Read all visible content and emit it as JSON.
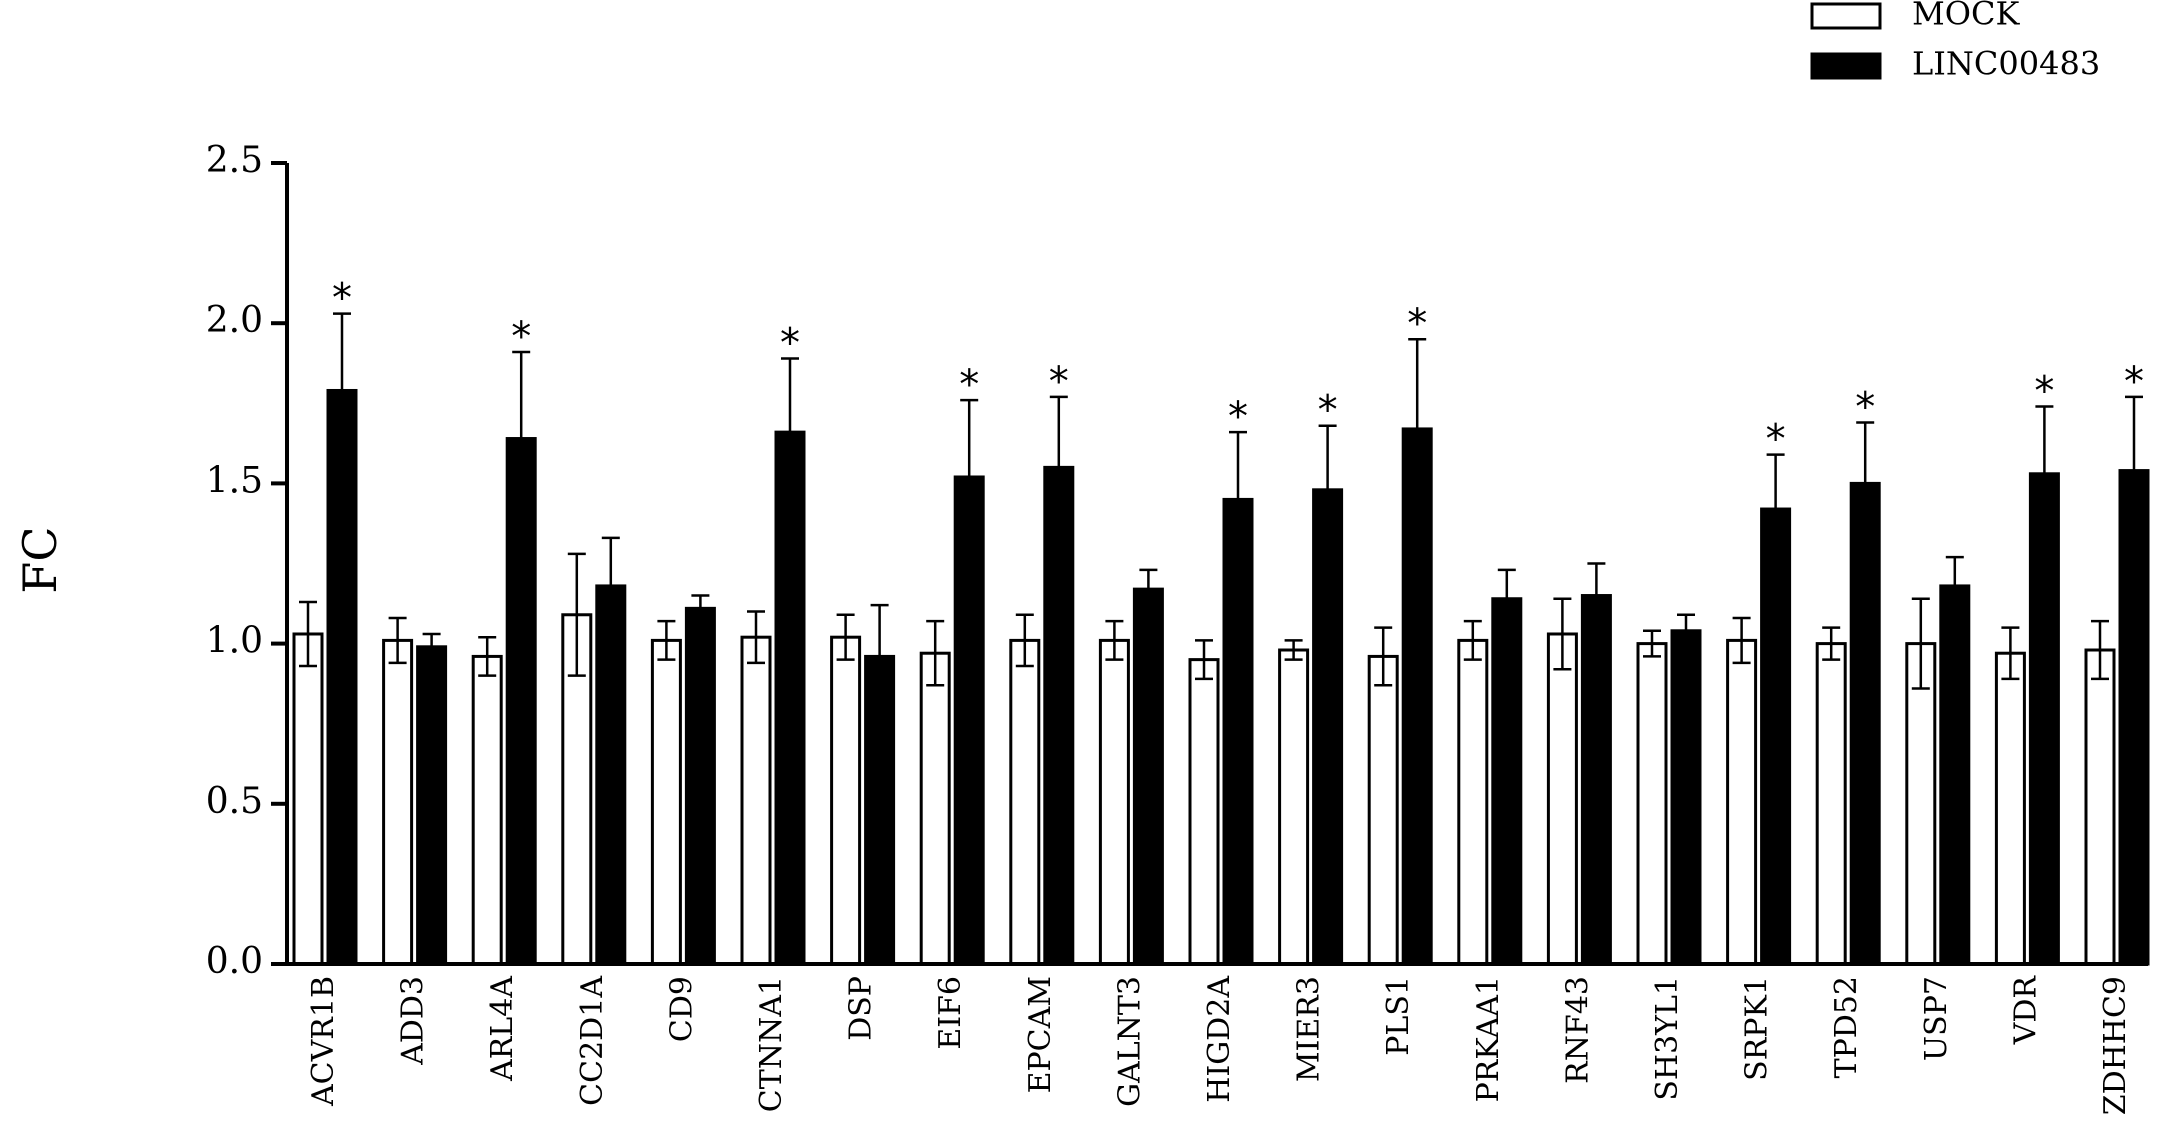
{
  "chart_data": {
    "type": "bar",
    "ylabel": "FC",
    "xlabel": "",
    "ylim": [
      0,
      2.5
    ],
    "yticks": [
      "0.0",
      "0.5",
      "1.0",
      "1.5",
      "2.0",
      "2.5"
    ],
    "categories": [
      "ACVR1B",
      "ADD3",
      "ARL4A",
      "CC2D1A",
      "CD9",
      "CTNNA1",
      "DSP",
      "EIF6",
      "EPCAM",
      "GALNT3",
      "HIGD2A",
      "MIER3",
      "PLS1",
      "PRKAA1",
      "RNF43",
      "SH3YL1",
      "SRPK1",
      "TPD52",
      "USP7",
      "VDR",
      "ZDHHC9"
    ],
    "series": [
      {
        "name": "MOCK",
        "color": "#ffffff",
        "values": [
          1.03,
          1.01,
          0.96,
          1.09,
          1.01,
          1.02,
          1.02,
          0.97,
          1.01,
          1.01,
          0.95,
          0.98,
          0.96,
          1.01,
          1.03,
          1.0,
          1.01,
          1.0,
          1.0,
          0.97,
          0.98
        ],
        "errors": [
          0.1,
          0.07,
          0.06,
          0.19,
          0.06,
          0.08,
          0.07,
          0.1,
          0.08,
          0.06,
          0.06,
          0.03,
          0.09,
          0.06,
          0.11,
          0.04,
          0.07,
          0.05,
          0.14,
          0.08,
          0.09
        ]
      },
      {
        "name": "LINC00483",
        "color": "#000000",
        "values": [
          1.79,
          0.99,
          1.64,
          1.18,
          1.11,
          1.66,
          0.96,
          1.52,
          1.55,
          1.17,
          1.45,
          1.48,
          1.67,
          1.14,
          1.15,
          1.04,
          1.42,
          1.5,
          1.18,
          1.53,
          1.54
        ],
        "errors": [
          0.24,
          0.04,
          0.27,
          0.15,
          0.04,
          0.23,
          0.16,
          0.24,
          0.22,
          0.06,
          0.21,
          0.2,
          0.28,
          0.09,
          0.1,
          0.05,
          0.17,
          0.19,
          0.09,
          0.21,
          0.23
        ],
        "significant": [
          true,
          false,
          true,
          false,
          false,
          true,
          false,
          true,
          true,
          false,
          true,
          true,
          true,
          false,
          false,
          false,
          true,
          true,
          false,
          true,
          true
        ]
      }
    ],
    "significance_marker": "*",
    "legend": "top-right",
    "grid": false
  }
}
